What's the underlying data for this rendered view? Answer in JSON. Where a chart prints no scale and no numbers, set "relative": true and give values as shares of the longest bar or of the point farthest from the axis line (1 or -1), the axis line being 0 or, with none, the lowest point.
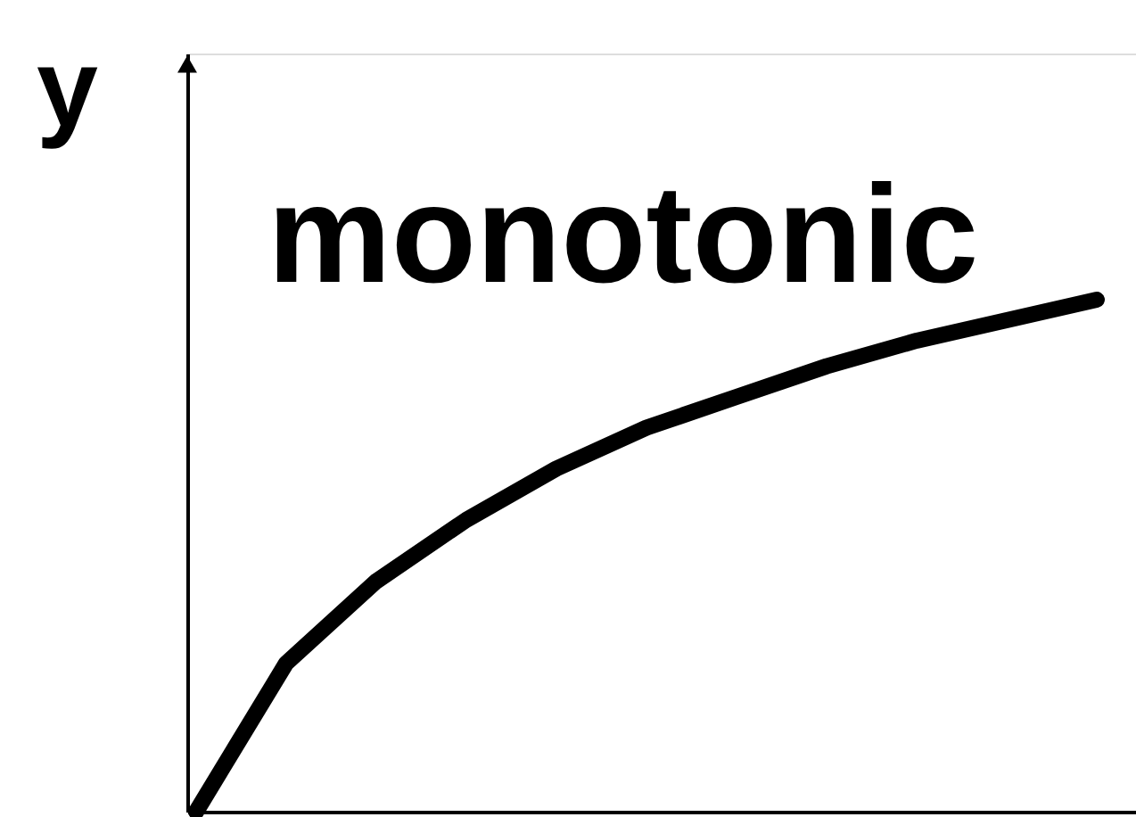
{
  "chart_data": {
    "type": "line",
    "title": "monotonic",
    "ylabel": "y",
    "relative": true,
    "categories": [
      null,
      null,
      null,
      null,
      null,
      null,
      null,
      null,
      null,
      null,
      null
    ],
    "series": [
      {
        "color": "#000000",
        "values": [
          0,
          0.29,
          0.45,
          0.57,
          0.67,
          0.75,
          0.81,
          0.87,
          0.92,
          0.96,
          1.0
        ]
      }
    ],
    "line_style": "solid",
    "marker": "none",
    "grid": false
  }
}
